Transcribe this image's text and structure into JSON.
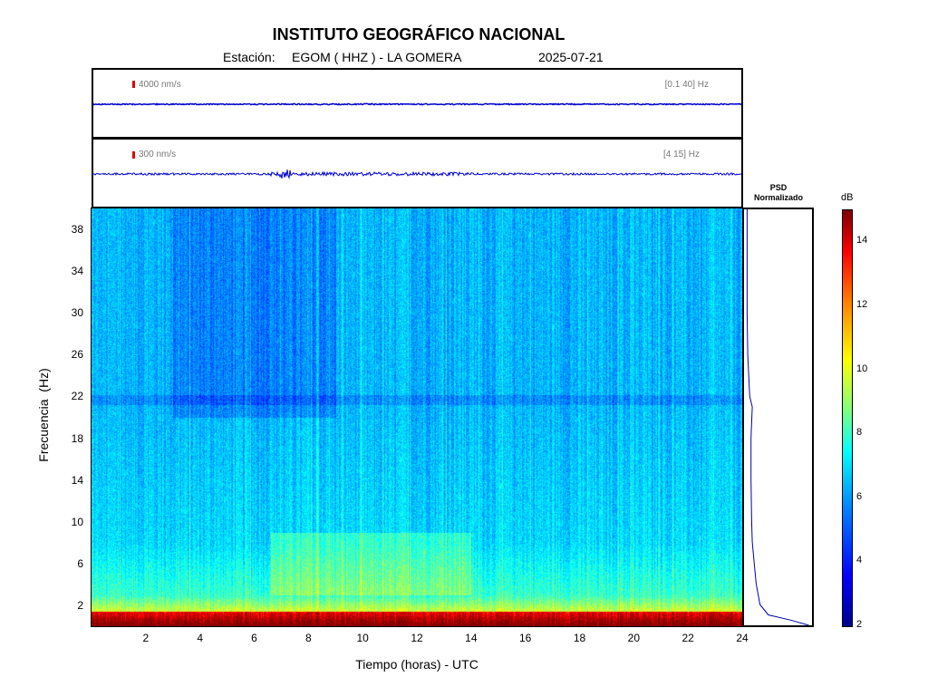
{
  "header": {
    "title": "INSTITUTO GEOGRÁFICO NACIONAL",
    "station_label": "Estación:",
    "station": "EGOM ( HHZ ) - LA GOMERA",
    "date": "2025-07-21"
  },
  "traces": [
    {
      "amplitude": "4000 nm/s",
      "band": "[0.1 40] Hz"
    },
    {
      "amplitude": "300 nm/s",
      "band": "[4 15] Hz"
    }
  ],
  "psd_title": [
    "PSD",
    "Normalizado"
  ],
  "colorbar": {
    "unit": "dB",
    "ticks": [
      "14",
      "12",
      "10",
      "8",
      "6",
      "4",
      "2"
    ],
    "min": 2,
    "max": 15
  },
  "chart_data": {
    "type": "heatmap",
    "xlabel": "Tiempo (horas) - UTC",
    "ylabel": "Frecuencia  (Hz)",
    "x_ticks": [
      "2",
      "4",
      "6",
      "8",
      "10",
      "12",
      "14",
      "16",
      "18",
      "20",
      "22",
      "24"
    ],
    "y_ticks": [
      "38",
      "34",
      "30",
      "26",
      "22",
      "18",
      "14",
      "10",
      "6",
      "2"
    ],
    "xlim": [
      0,
      24
    ],
    "ylim": [
      0,
      40
    ],
    "colormap": "jet",
    "psd_profile": {
      "freq": [
        0,
        0.5,
        1,
        2,
        4,
        6,
        8,
        10,
        14,
        18,
        21,
        22,
        26,
        30,
        34,
        38,
        40
      ],
      "value": [
        0.98,
        0.7,
        0.35,
        0.22,
        0.16,
        0.13,
        0.1,
        0.09,
        0.08,
        0.08,
        0.1,
        0.06,
        0.03,
        0.02,
        0.02,
        0.02,
        0.02
      ]
    }
  }
}
